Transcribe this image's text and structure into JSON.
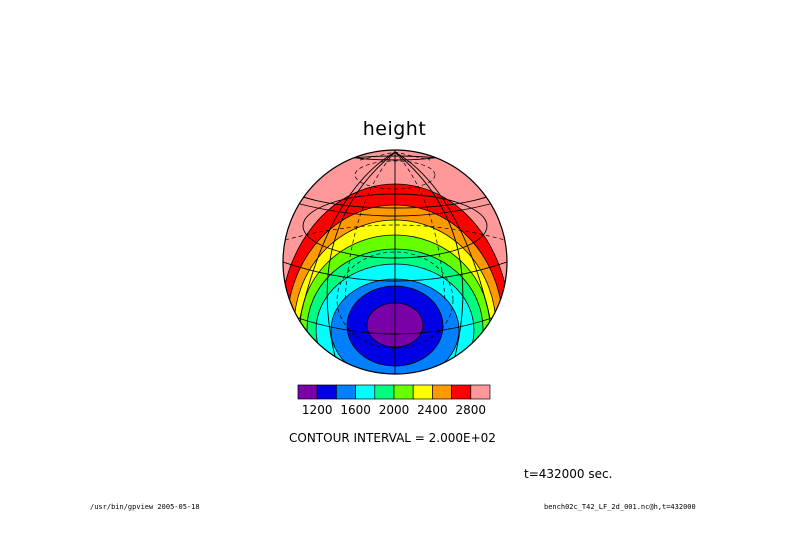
{
  "chart_data": {
    "type": "contour",
    "title": "height",
    "projection": "orthographic",
    "levels": [
      1200,
      1400,
      1600,
      1800,
      2000,
      2200,
      2400,
      2600,
      2800
    ],
    "colorbar": {
      "colors": [
        "#7a00a8",
        "#0000e6",
        "#0080ff",
        "#00ffff",
        "#00ff80",
        "#66ff00",
        "#ffff00",
        "#ff9900",
        "#ff0000",
        "#ff9999"
      ],
      "tick_labels": [
        "1200",
        "1600",
        "2000",
        "2400",
        "2800"
      ]
    },
    "contour_interval_text": "CONTOUR INTERVAL = 2.000E+02",
    "time_text": "t=432000 sec.",
    "footer_left": "/usr/bin/gpview  2005-05-18",
    "footer_right": "bench02c_T42_LF_2d_001.nc@h,t=432000"
  }
}
